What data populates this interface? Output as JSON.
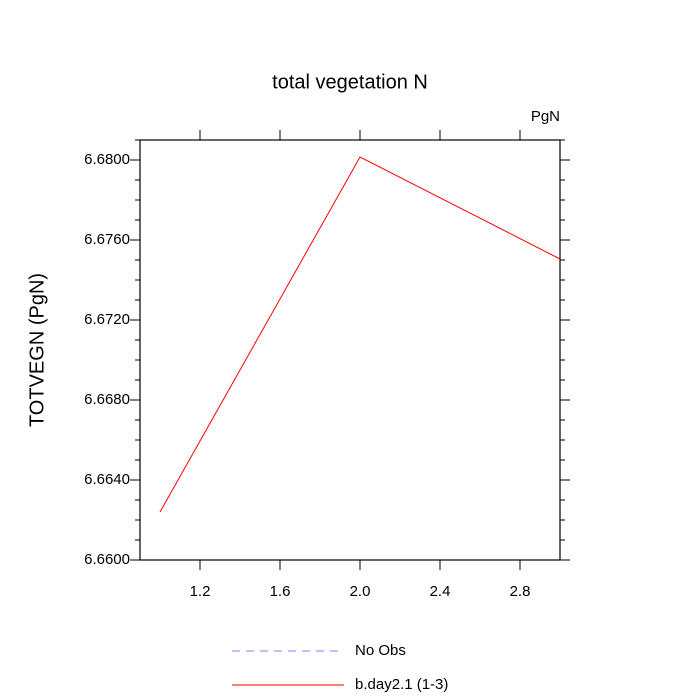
{
  "chart_data": {
    "type": "line",
    "title": "total vegetation N",
    "units": "PgN",
    "y_label": "TOTVEGN  (PgN)",
    "x": [
      1,
      2,
      3
    ],
    "series": [
      {
        "name": "No Obs",
        "color": "#8080ff",
        "dashed": true,
        "values": [
          null,
          null,
          null
        ]
      },
      {
        "name": "b.day2.1 (1-3)",
        "color": "#ff0000",
        "dashed": false,
        "values": [
          6.6624,
          6.68015,
          6.67505
        ]
      }
    ],
    "xlim": [
      0.9,
      3.0
    ],
    "ylim": [
      6.66,
      6.681
    ],
    "xticks": [
      {
        "value": 1.2,
        "label": "1.2"
      },
      {
        "value": 1.6,
        "label": "1.6"
      },
      {
        "value": 2.0,
        "label": "2.0"
      },
      {
        "value": 2.4,
        "label": "2.4"
      },
      {
        "value": 2.8,
        "label": "2.8"
      }
    ],
    "yticks": [
      {
        "value": 6.66,
        "label": "6.6600"
      },
      {
        "value": 6.664,
        "label": "6.6640"
      },
      {
        "value": 6.668,
        "label": "6.6680"
      },
      {
        "value": 6.672,
        "label": "6.6720"
      },
      {
        "value": 6.676,
        "label": "6.6760"
      },
      {
        "value": 6.68,
        "label": "6.6800"
      }
    ],
    "yminorticks": [
      6.661,
      6.662,
      6.663,
      6.665,
      6.666,
      6.667,
      6.669,
      6.67,
      6.671,
      6.673,
      6.674,
      6.675,
      6.677,
      6.678,
      6.679,
      6.681
    ]
  }
}
